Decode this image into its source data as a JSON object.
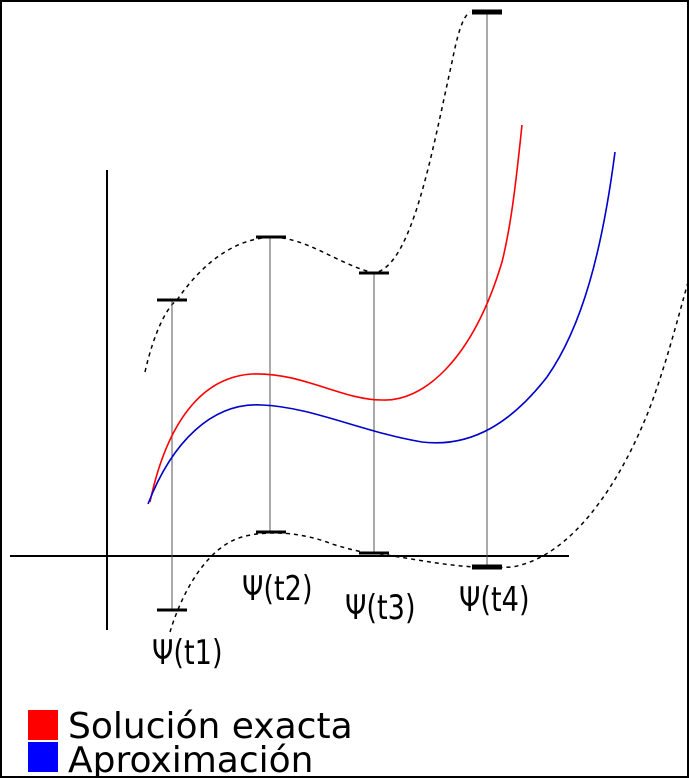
{
  "labels": {
    "t1": "Ψ(t1)",
    "t2": "Ψ(t2)",
    "t3": "Ψ(t3)",
    "t4": "Ψ(t4)"
  },
  "legend": {
    "exact": "Solución exacta",
    "approx": "Aproximación"
  },
  "colors": {
    "exact": "#ff0000",
    "approx": "#0000cc",
    "axis": "#000000",
    "bound": "#000000",
    "interval": "#555555"
  }
}
